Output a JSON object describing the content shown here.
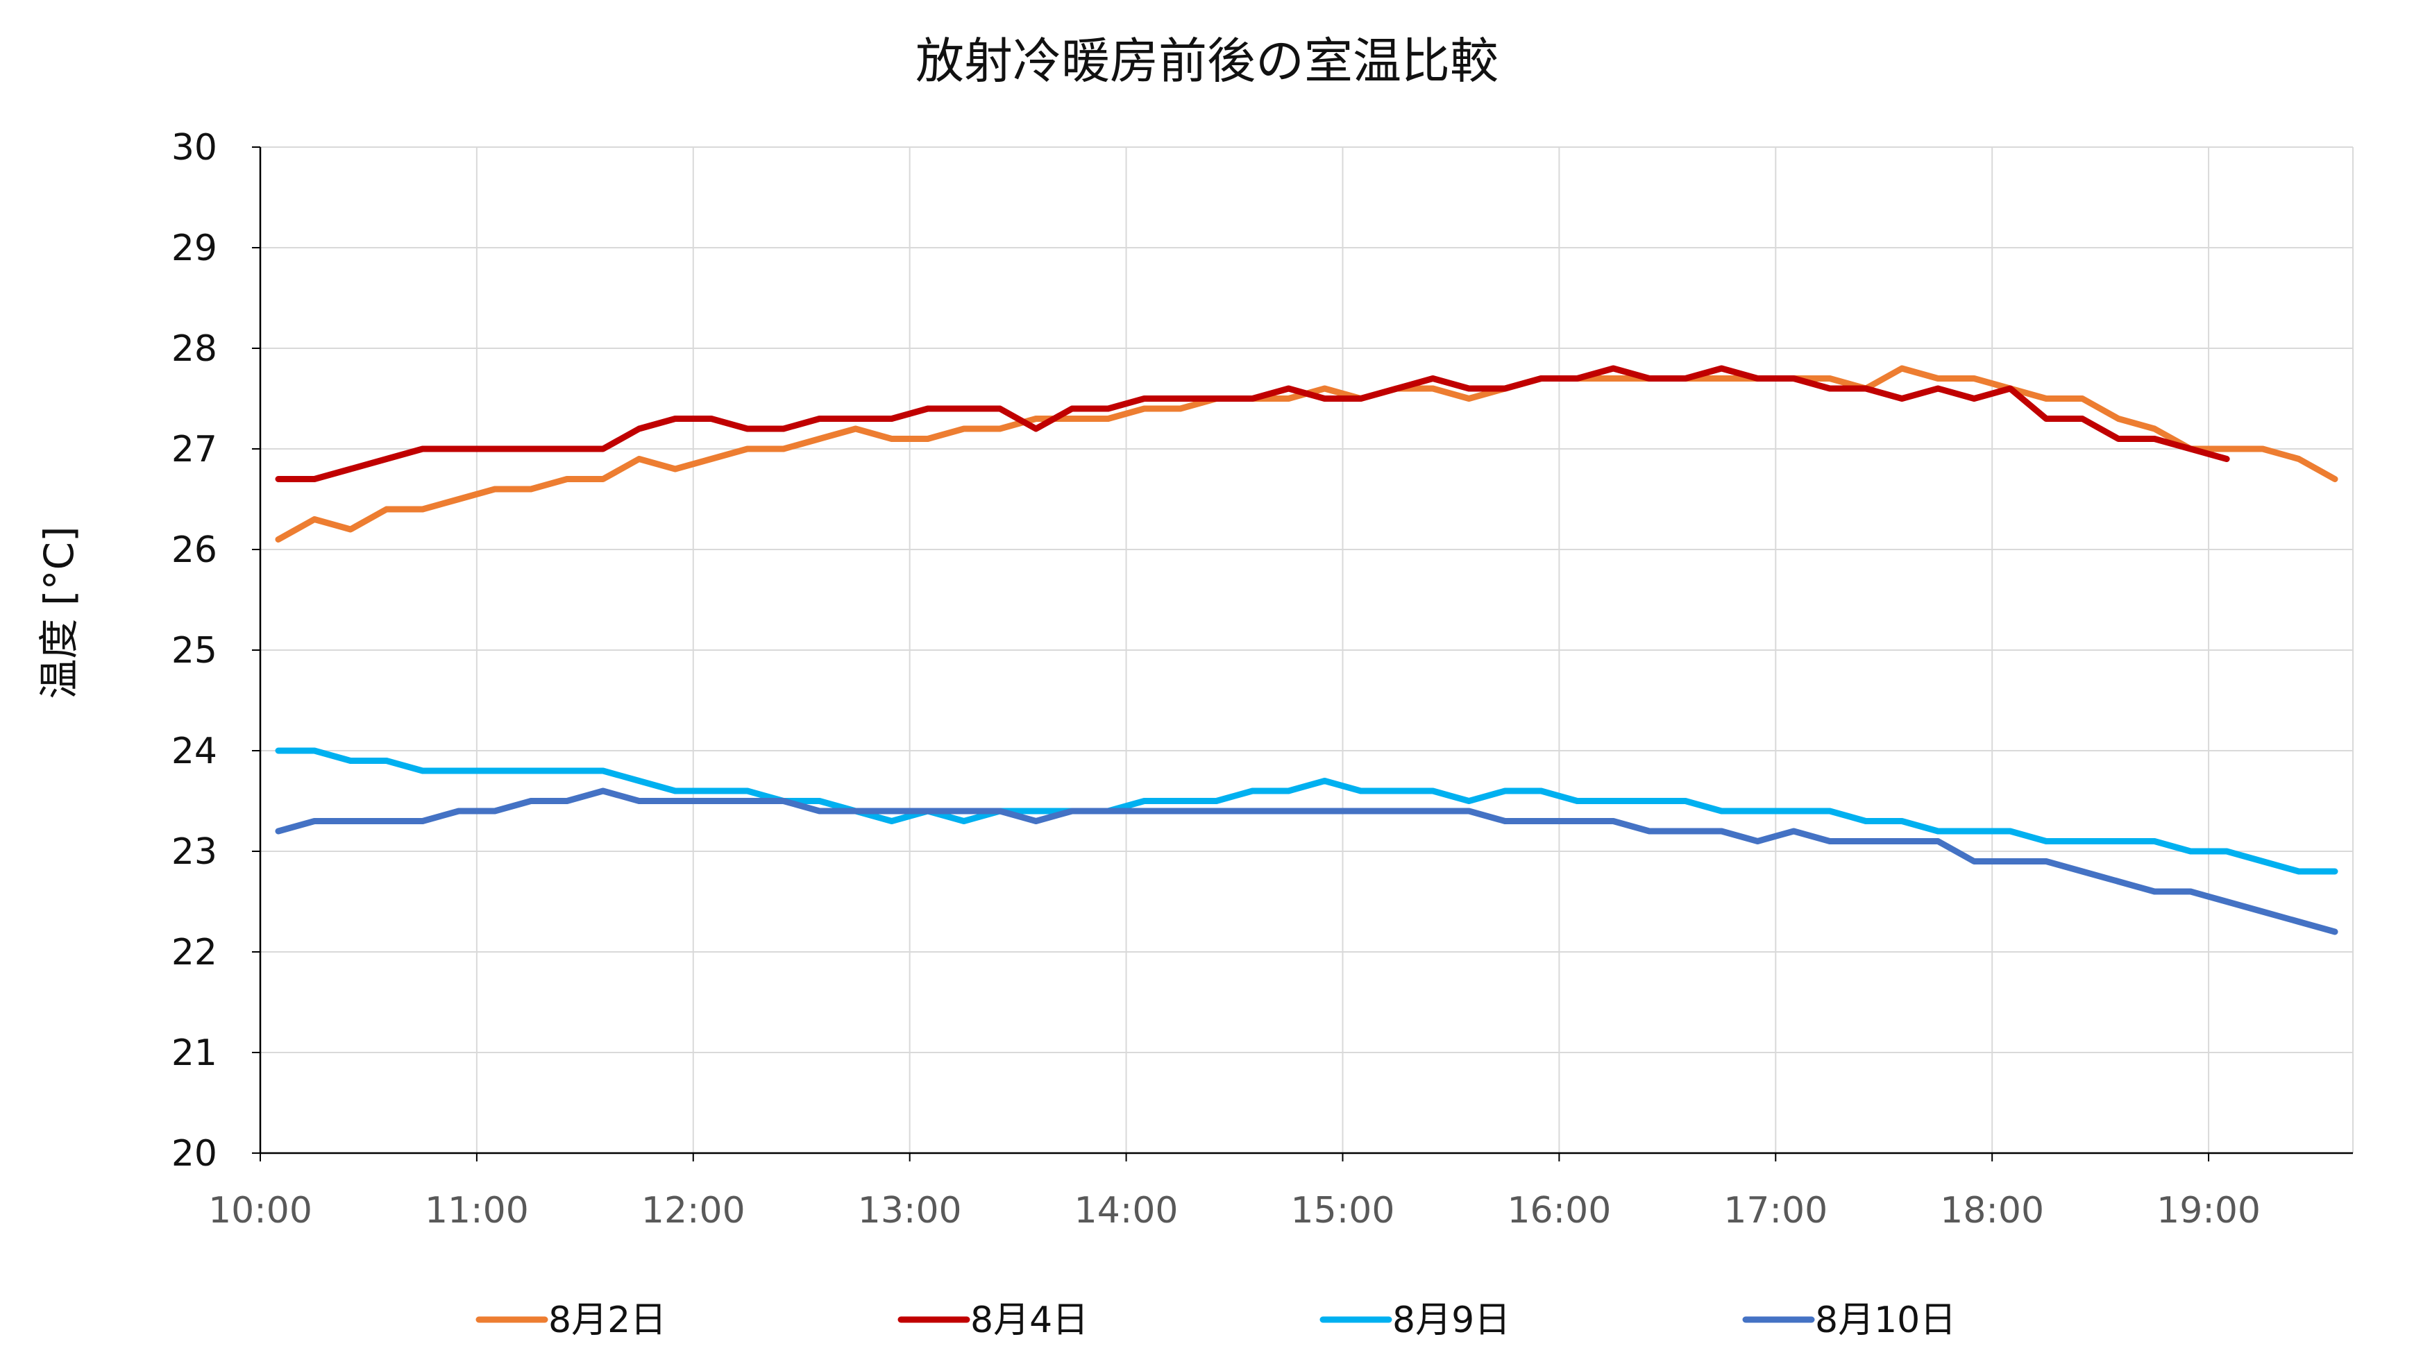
{
  "chart_data": {
    "type": "line",
    "title": "放射冷暖房前後の室温比較",
    "xlabel": "",
    "ylabel": "温度 [°C]",
    "ylim": [
      20,
      30
    ],
    "yticks": [
      "20",
      "21",
      "22",
      "23",
      "24",
      "25",
      "26",
      "27",
      "28",
      "29",
      "30"
    ],
    "xlim": [
      "10:00",
      "19:40"
    ],
    "xticks": [
      "10:00",
      "11:00",
      "12:00",
      "13:00",
      "14:00",
      "15:00",
      "16:00",
      "17:00",
      "18:00",
      "19:00"
    ],
    "grid": true,
    "legend_position": "bottom",
    "colors": {
      "8月2日": "#ED7D31",
      "8月4日": "#C00000",
      "8月9日": "#00B0F0",
      "8月10日": "#4472C4",
      "grid": "#D9D9D9",
      "axis": "#000000"
    },
    "series": [
      {
        "name": "8月2日",
        "x": [
          "10:05",
          "10:15",
          "10:25",
          "10:35",
          "10:45",
          "10:55",
          "11:05",
          "11:15",
          "11:25",
          "11:35",
          "11:45",
          "11:55",
          "12:05",
          "12:15",
          "12:25",
          "12:35",
          "12:45",
          "12:55",
          "13:05",
          "13:15",
          "13:25",
          "13:35",
          "13:45",
          "13:55",
          "14:05",
          "14:15",
          "14:25",
          "14:35",
          "14:45",
          "14:55",
          "15:05",
          "15:15",
          "15:25",
          "15:35",
          "15:45",
          "15:55",
          "16:05",
          "16:15",
          "16:25",
          "16:35",
          "16:45",
          "16:55",
          "17:05",
          "17:15",
          "17:25",
          "17:35",
          "17:45",
          "17:55",
          "18:05",
          "18:15",
          "18:25",
          "18:35",
          "18:45",
          "18:55",
          "19:05",
          "19:15",
          "19:25",
          "19:35"
        ],
        "y": [
          26.1,
          26.3,
          26.2,
          26.4,
          26.4,
          26.5,
          26.6,
          26.6,
          26.7,
          26.7,
          26.9,
          26.8,
          26.9,
          27.0,
          27.0,
          27.1,
          27.2,
          27.1,
          27.1,
          27.2,
          27.2,
          27.3,
          27.3,
          27.3,
          27.4,
          27.4,
          27.5,
          27.5,
          27.5,
          27.6,
          27.5,
          27.6,
          27.6,
          27.5,
          27.6,
          27.7,
          27.7,
          27.7,
          27.7,
          27.7,
          27.7,
          27.7,
          27.7,
          27.7,
          27.6,
          27.8,
          27.7,
          27.7,
          27.6,
          27.5,
          27.5,
          27.3,
          27.2,
          27.0,
          27.0,
          27.0,
          26.9,
          26.7
        ]
      },
      {
        "name": "8月4日",
        "x": [
          "10:05",
          "10:15",
          "10:25",
          "10:35",
          "10:45",
          "10:55",
          "11:05",
          "11:15",
          "11:25",
          "11:35",
          "11:45",
          "11:55",
          "12:05",
          "12:15",
          "12:25",
          "12:35",
          "12:45",
          "12:55",
          "13:05",
          "13:15",
          "13:25",
          "13:35",
          "13:45",
          "13:55",
          "14:05",
          "14:15",
          "14:25",
          "14:35",
          "14:45",
          "14:55",
          "15:05",
          "15:15",
          "15:25",
          "15:35",
          "15:45",
          "15:55",
          "16:05",
          "16:15",
          "16:25",
          "16:35",
          "16:45",
          "16:55",
          "17:05",
          "17:15",
          "17:25",
          "17:35",
          "17:45",
          "17:55",
          "18:05",
          "18:15",
          "18:25",
          "18:35",
          "18:45",
          "18:55",
          "19:05"
        ],
        "y": [
          26.7,
          26.7,
          26.8,
          26.9,
          27.0,
          27.0,
          27.0,
          27.0,
          27.0,
          27.0,
          27.2,
          27.3,
          27.3,
          27.2,
          27.2,
          27.3,
          27.3,
          27.3,
          27.4,
          27.4,
          27.4,
          27.2,
          27.4,
          27.4,
          27.5,
          27.5,
          27.5,
          27.5,
          27.6,
          27.5,
          27.5,
          27.6,
          27.7,
          27.6,
          27.6,
          27.7,
          27.7,
          27.8,
          27.7,
          27.7,
          27.8,
          27.7,
          27.7,
          27.6,
          27.6,
          27.5,
          27.6,
          27.5,
          27.6,
          27.3,
          27.3,
          27.1,
          27.1,
          27.0,
          26.9
        ]
      },
      {
        "name": "8月9日",
        "x": [
          "10:05",
          "10:15",
          "10:25",
          "10:35",
          "10:45",
          "10:55",
          "11:05",
          "11:15",
          "11:25",
          "11:35",
          "11:45",
          "11:55",
          "12:05",
          "12:15",
          "12:25",
          "12:35",
          "12:45",
          "12:55",
          "13:05",
          "13:15",
          "13:25",
          "13:35",
          "13:45",
          "13:55",
          "14:05",
          "14:15",
          "14:25",
          "14:35",
          "14:45",
          "14:55",
          "15:05",
          "15:15",
          "15:25",
          "15:35",
          "15:45",
          "15:55",
          "16:05",
          "16:15",
          "16:25",
          "16:35",
          "16:45",
          "16:55",
          "17:05",
          "17:15",
          "17:25",
          "17:35",
          "17:45",
          "17:55",
          "18:05",
          "18:15",
          "18:25",
          "18:35",
          "18:45",
          "18:55",
          "19:05",
          "19:15",
          "19:25",
          "19:35"
        ],
        "y": [
          24.0,
          24.0,
          23.9,
          23.9,
          23.8,
          23.8,
          23.8,
          23.8,
          23.8,
          23.8,
          23.7,
          23.6,
          23.6,
          23.6,
          23.5,
          23.5,
          23.4,
          23.3,
          23.4,
          23.3,
          23.4,
          23.4,
          23.4,
          23.4,
          23.5,
          23.5,
          23.5,
          23.6,
          23.6,
          23.7,
          23.6,
          23.6,
          23.6,
          23.5,
          23.6,
          23.6,
          23.5,
          23.5,
          23.5,
          23.5,
          23.4,
          23.4,
          23.4,
          23.4,
          23.3,
          23.3,
          23.2,
          23.2,
          23.2,
          23.1,
          23.1,
          23.1,
          23.1,
          23.0,
          23.0,
          22.9,
          22.8,
          22.8
        ]
      },
      {
        "name": "8月10日",
        "x": [
          "10:05",
          "10:15",
          "10:25",
          "10:35",
          "10:45",
          "10:55",
          "11:05",
          "11:15",
          "11:25",
          "11:35",
          "11:45",
          "11:55",
          "12:05",
          "12:15",
          "12:25",
          "12:35",
          "12:45",
          "12:55",
          "13:05",
          "13:15",
          "13:25",
          "13:35",
          "13:45",
          "13:55",
          "14:05",
          "14:15",
          "14:25",
          "14:35",
          "14:45",
          "14:55",
          "15:05",
          "15:15",
          "15:25",
          "15:35",
          "15:45",
          "15:55",
          "16:05",
          "16:15",
          "16:25",
          "16:35",
          "16:45",
          "16:55",
          "17:05",
          "17:15",
          "17:25",
          "17:35",
          "17:45",
          "17:55",
          "18:05",
          "18:15",
          "18:25",
          "18:35",
          "18:45",
          "18:55",
          "19:05",
          "19:15",
          "19:25",
          "19:35"
        ],
        "y": [
          23.2,
          23.3,
          23.3,
          23.3,
          23.3,
          23.4,
          23.4,
          23.5,
          23.5,
          23.6,
          23.5,
          23.5,
          23.5,
          23.5,
          23.5,
          23.4,
          23.4,
          23.4,
          23.4,
          23.4,
          23.4,
          23.3,
          23.4,
          23.4,
          23.4,
          23.4,
          23.4,
          23.4,
          23.4,
          23.4,
          23.4,
          23.4,
          23.4,
          23.4,
          23.3,
          23.3,
          23.3,
          23.3,
          23.2,
          23.2,
          23.2,
          23.1,
          23.2,
          23.1,
          23.1,
          23.1,
          23.1,
          22.9,
          22.9,
          22.9,
          22.8,
          22.7,
          22.6,
          22.6,
          22.5,
          22.4,
          22.3,
          22.2
        ]
      }
    ]
  }
}
